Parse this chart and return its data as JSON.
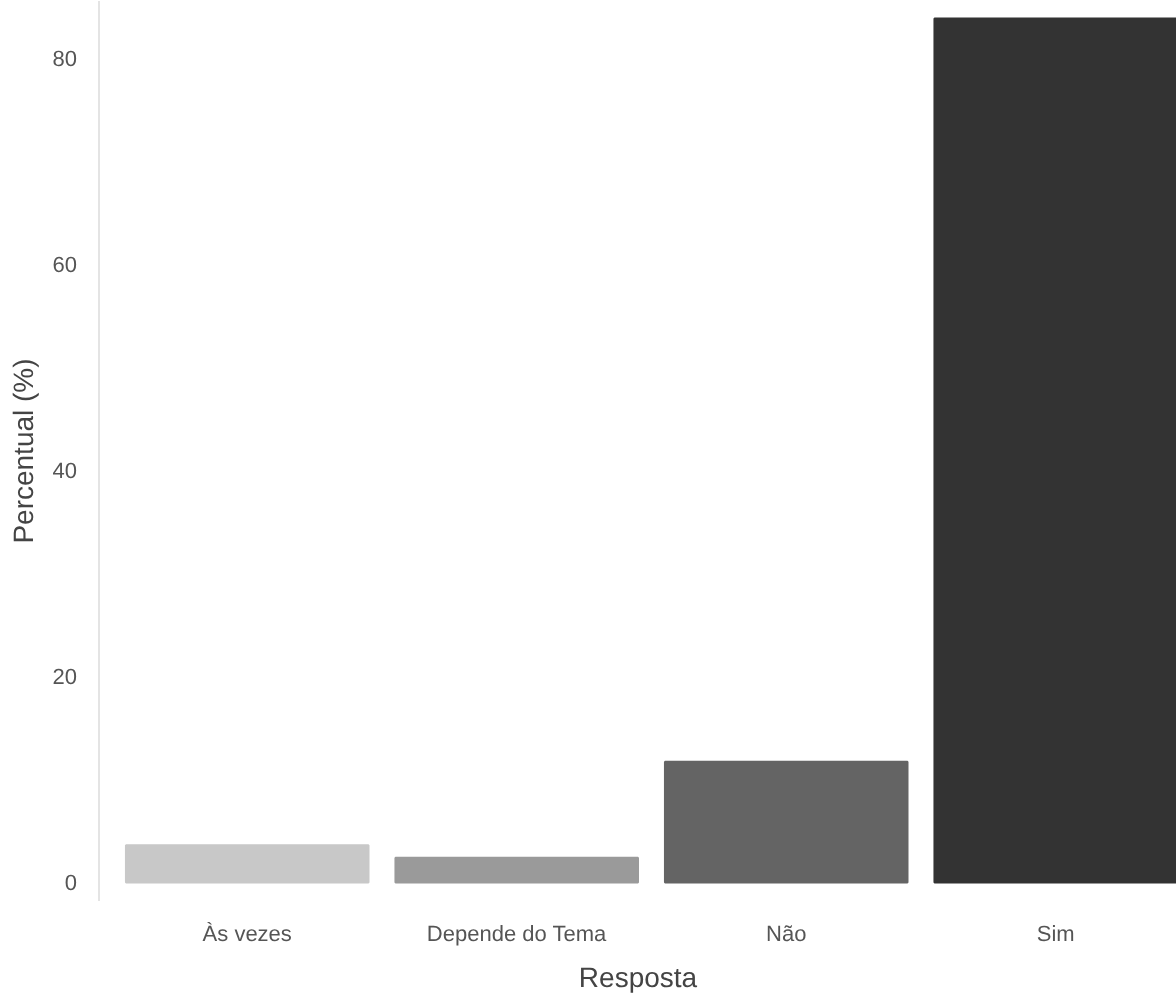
{
  "chart_data": {
    "type": "bar",
    "xlabel": "Resposta",
    "ylabel": "Percentual (%)",
    "categories": [
      "Às vezes",
      "Depende do Tema",
      "Não",
      "Sim"
    ],
    "values": [
      3.6,
      2.4,
      11.7,
      83.8
    ],
    "colors": [
      "#c8c8c8",
      "#9a9a9a",
      "#646464",
      "#333333"
    ],
    "ylim": [
      -1.8,
      85.5
    ],
    "yticks": [
      0,
      20,
      40,
      60,
      80
    ],
    "grid": false
  }
}
